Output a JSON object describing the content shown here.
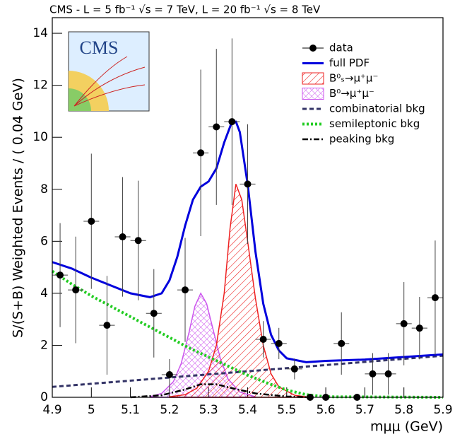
{
  "chart_data": {
    "type": "line",
    "title": "CMS - L = 5 fb⁻¹ √s = 7 TeV, L = 20 fb⁻¹ √s = 8 TeV",
    "logo_text": "CMS",
    "x_label": "mμμ (GeV)",
    "y_label": "S/(S+B) Weighted Events / ( 0.04 GeV)",
    "xlim": [
      4.9,
      5.9
    ],
    "ylim": [
      0,
      14.6
    ],
    "xticks": [
      4.9,
      5,
      5.1,
      5.2,
      5.3,
      5.4,
      5.5,
      5.6,
      5.7,
      5.8,
      5.9
    ],
    "yticks": [
      0,
      2,
      4,
      6,
      8,
      10,
      12,
      14
    ],
    "legend": "upper right",
    "data": {
      "name": "data",
      "color": "#000000",
      "x": [
        4.92,
        4.96,
        5.0,
        5.04,
        5.08,
        5.12,
        5.16,
        5.2,
        5.24,
        5.28,
        5.32,
        5.36,
        5.4,
        5.44,
        5.48,
        5.52,
        5.56,
        5.6,
        5.64,
        5.68,
        5.72,
        5.76,
        5.8,
        5.84,
        5.88
      ],
      "values": [
        4.7,
        4.13,
        6.77,
        2.77,
        6.17,
        6.03,
        3.23,
        0.87,
        4.13,
        9.4,
        10.4,
        10.6,
        8.2,
        2.23,
        2.07,
        1.09,
        0,
        0,
        2.07,
        0,
        0.9,
        0.9,
        2.83,
        2.66,
        3.83
      ],
      "errors": [
        2.0,
        2.05,
        2.6,
        1.9,
        2.3,
        2.3,
        1.7,
        0.6,
        2.0,
        3.2,
        3.0,
        3.2,
        2.3,
        0.7,
        0.6,
        0.4,
        0,
        0,
        1.2,
        0,
        0.8,
        0.8,
        1.6,
        1.2,
        2.2
      ]
    },
    "series": [
      {
        "name": "full PDF",
        "color": "#0000dd",
        "style": "solid",
        "x": [
          4.9,
          4.95,
          5.0,
          5.05,
          5.1,
          5.15,
          5.18,
          5.2,
          5.22,
          5.24,
          5.26,
          5.28,
          5.3,
          5.32,
          5.34,
          5.36,
          5.37,
          5.38,
          5.4,
          5.42,
          5.44,
          5.46,
          5.48,
          5.5,
          5.55,
          5.6,
          5.7,
          5.8,
          5.9
        ],
        "values": [
          5.2,
          4.95,
          4.6,
          4.3,
          4.0,
          3.85,
          4.0,
          4.5,
          5.4,
          6.6,
          7.6,
          8.1,
          8.3,
          8.8,
          9.8,
          10.6,
          10.6,
          10.2,
          8.2,
          5.6,
          3.6,
          2.4,
          1.8,
          1.5,
          1.35,
          1.4,
          1.45,
          1.55,
          1.65
        ]
      },
      {
        "name": "B⁰ₛ→μ⁺μ⁻",
        "color": "#ee2222",
        "style": "hatch",
        "x": [
          5.2,
          5.24,
          5.27,
          5.3,
          5.32,
          5.34,
          5.355,
          5.37,
          5.385,
          5.4,
          5.42,
          5.44,
          5.46,
          5.48,
          5.52,
          5.56
        ],
        "values": [
          0.02,
          0.1,
          0.35,
          1.0,
          2.0,
          4.0,
          6.5,
          8.2,
          7.6,
          6.0,
          3.8,
          2.0,
          0.9,
          0.4,
          0.08,
          0
        ]
      },
      {
        "name": "B⁰→μ⁺μ⁻",
        "color": "#cc55ee",
        "style": "cross",
        "x": [
          5.15,
          5.18,
          5.21,
          5.23,
          5.25,
          5.265,
          5.28,
          5.295,
          5.31,
          5.33,
          5.35,
          5.38,
          5.42
        ],
        "values": [
          0.02,
          0.15,
          0.6,
          1.3,
          2.5,
          3.5,
          4.0,
          3.6,
          2.7,
          1.5,
          0.7,
          0.2,
          0.02
        ]
      },
      {
        "name": "combinatorial bkg",
        "color": "#333366",
        "style": "dashed",
        "x": [
          4.9,
          5.9
        ],
        "values": [
          0.4,
          1.6
        ]
      },
      {
        "name": "semileptonic bkg",
        "color": "#22cc22",
        "style": "dotted",
        "x": [
          4.9,
          4.95,
          5.0,
          5.05,
          5.1,
          5.15,
          5.2,
          5.25,
          5.3,
          5.35,
          5.4,
          5.45,
          5.5,
          5.55,
          5.6,
          5.9
        ],
        "values": [
          4.85,
          4.35,
          3.9,
          3.5,
          3.1,
          2.7,
          2.3,
          1.9,
          1.55,
          1.2,
          0.85,
          0.55,
          0.28,
          0.1,
          0.02,
          0
        ]
      },
      {
        "name": "peaking bkg",
        "color": "#000000",
        "style": "dashdot",
        "x": [
          5.1,
          5.18,
          5.24,
          5.28,
          5.32,
          5.36,
          5.42,
          5.5,
          5.56
        ],
        "values": [
          0,
          0.08,
          0.3,
          0.5,
          0.5,
          0.35,
          0.15,
          0.03,
          0
        ]
      }
    ]
  }
}
